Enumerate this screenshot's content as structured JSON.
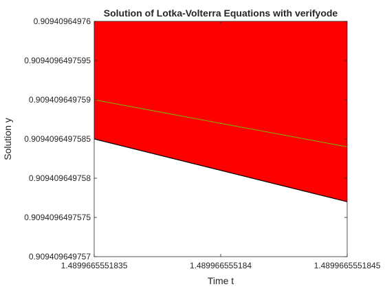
{
  "chart_data": {
    "type": "area",
    "title": "Solution of Lotka-Volterra Equations with verifyode",
    "xlabel": "Time t",
    "ylabel": "Solution y",
    "x_ticks": [
      "1.4899665551835",
      "1.489966555184",
      "1.4899665551845"
    ],
    "x_tick_values": [
      1.4899665551835,
      1.489966555184,
      1.4899665551845
    ],
    "y_ticks": [
      "0.909409649757",
      "0.9094096497575",
      "0.909409649758",
      "0.9094096497585",
      "0.909409649759",
      "0.9094096497595",
      "0.90940964976"
    ],
    "y_tick_values": [
      0.909409649757,
      0.9094096497575,
      0.909409649758,
      0.9094096497585,
      0.909409649759,
      0.9094096497595,
      0.90940964976
    ],
    "xlim": [
      1.4899665551835,
      1.4899665551845
    ],
    "ylim": [
      0.909409649757,
      0.90940964976
    ],
    "grid": false,
    "box": true,
    "series": [
      {
        "kind": "enclosure-band",
        "color": "#ff0000",
        "x": [
          1.4899665551835,
          1.4899665551845
        ],
        "lower": [
          0.9094096497585,
          0.9094096497577
        ],
        "upper": [
          0.90940964976,
          0.90940964976
        ]
      },
      {
        "kind": "line",
        "color": "#7ab800",
        "x": [
          1.4899665551835,
          1.489966555184,
          1.4899665551845
        ],
        "y": [
          0.909409649759,
          0.9094096497587,
          0.9094096497584
        ]
      },
      {
        "kind": "line",
        "color": "#000000",
        "x": [
          1.4899665551835,
          1.4899665551845
        ],
        "y": [
          0.9094096497585,
          0.9094096497577
        ]
      }
    ]
  }
}
